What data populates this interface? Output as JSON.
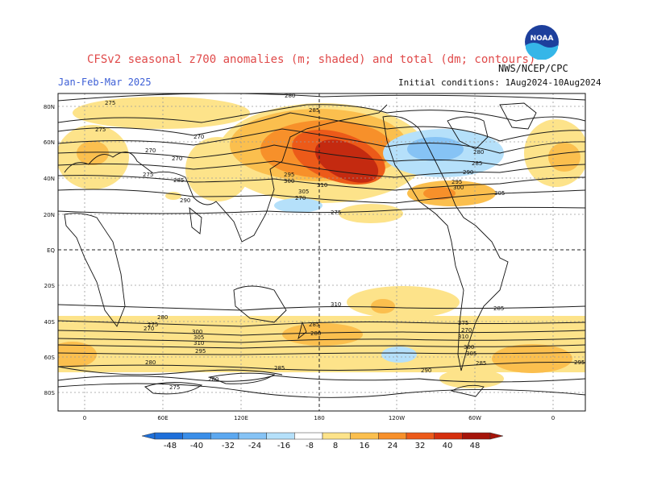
{
  "header": {
    "title": "CFSv2 seasonal z700 anomalies (m; shaded) and total (dm; contours)",
    "season": "Jan-Feb-Mar 2025",
    "initial_conditions": "Initial conditions: 1Aug2024-10Aug2024",
    "agency": "NWS/NCEP/CPC",
    "logo_text": "NOAA"
  },
  "map": {
    "lat_labels": [
      "80N",
      "60N",
      "40N",
      "20N",
      "EQ",
      "20S",
      "40S",
      "60S",
      "80S"
    ],
    "lon_labels": [
      "0",
      "60E",
      "120E",
      "180",
      "120W",
      "60W",
      "0"
    ],
    "contour_labels": [
      "275",
      "280",
      "285",
      "290",
      "295",
      "300",
      "305",
      "310",
      "310",
      "310",
      "310",
      "300",
      "305",
      "295",
      "290",
      "285",
      "280",
      "275",
      "270",
      "270",
      "270",
      "275",
      "285",
      "290",
      "295",
      "300",
      "305",
      "310",
      "270",
      "275",
      "280",
      "285",
      "290",
      "295",
      "300",
      "305",
      "310",
      "285",
      "280",
      "275",
      "270",
      "300",
      "305",
      "310",
      "295",
      "285",
      "280",
      "275",
      "270",
      "310",
      "300",
      "305",
      "280",
      "285",
      "290",
      "295",
      "285",
      "280",
      "275"
    ]
  },
  "colorbar": {
    "ticks": [
      "-48",
      "-40",
      "-32",
      "-24",
      "-16",
      "-8",
      "8",
      "16",
      "24",
      "32",
      "40",
      "48"
    ],
    "colors": [
      "#1e6fd9",
      "#3a8ee8",
      "#5ca8f0",
      "#86c3f5",
      "#b5e0fa",
      "#ffffff",
      "#fde38a",
      "#fbbf4e",
      "#f7902a",
      "#ec5a19",
      "#d52f0e",
      "#a5140a"
    ]
  },
  "anomaly_colors": {
    "positive_light": "#fde38a",
    "positive_mid": "#fbbf4e",
    "positive_strong": "#f7902a",
    "positive_deep": "#ec5a19",
    "positive_max": "#c42a10",
    "negative_light": "#b5e0fa",
    "negative_mid": "#86c3f5"
  }
}
